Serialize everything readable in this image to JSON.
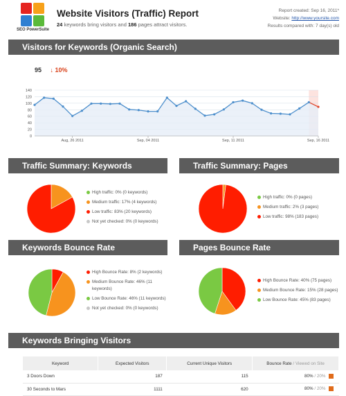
{
  "header": {
    "logo_text": "SEO PowerSuite",
    "title": "Website Visitors (Traffic) Report",
    "sub_kw_count": "24",
    "sub_mid": "keywords bring visitors and",
    "sub_pages_count": "186",
    "sub_end": "pages attract visitors.",
    "meta_created": "Report created: Sep 16, 2011*",
    "meta_website_label": "Website:",
    "meta_website_url": "http://www.yoursite.com",
    "meta_compare": "Results compared with: 7 day(s) old"
  },
  "sections": {
    "organic": "Visitors for Keywords (Organic Search)",
    "traffic_keywords": "Traffic Summary: Keywords",
    "traffic_pages": "Traffic Summary: Pages",
    "bounce_keywords": "Keywords Bounce Rate",
    "bounce_pages": "Pages Bounce Rate",
    "bringing": "Keywords Bringing Visitors"
  },
  "kpi": {
    "value": "95",
    "change": "↓ 10%"
  },
  "legends": {
    "traffic_keywords": [
      {
        "label": "High traffic: 0% (0 keywords)",
        "color": "#7ac943"
      },
      {
        "label": "Medium traffic: 17% (4 keywords)",
        "color": "#f7931e"
      },
      {
        "label": "Low traffic: 83% (20 keywords)",
        "color": "#ff1d00"
      },
      {
        "label": "Not yet checked: 0% (0 keywords)",
        "color": "#c8c8c8"
      }
    ],
    "traffic_pages": [
      {
        "label": "High traffic: 0% (0 pages)",
        "color": "#7ac943"
      },
      {
        "label": "Medium traffic: 2% (3 pages)",
        "color": "#f7931e"
      },
      {
        "label": "Low traffic: 98% (183 pages)",
        "color": "#ff1d00"
      }
    ],
    "bounce_keywords": [
      {
        "label": "High Bounce Rate: 8% (2 keywords)",
        "color": "#ff1d00"
      },
      {
        "label": "Medium Bounce Rate: 46% (11 keywords)",
        "color": "#f7931e"
      },
      {
        "label": "Low Bounce Rate: 46% (11 keywords)",
        "color": "#7ac943"
      },
      {
        "label": "Not yet checked: 0% (0 keywords)",
        "color": "#c8c8c8"
      }
    ],
    "bounce_pages": [
      {
        "label": "High Bounce Rate: 40% (75 pages)",
        "color": "#ff1d00"
      },
      {
        "label": "Medium Bounce Rate: 15% (28 pages)",
        "color": "#f7931e"
      },
      {
        "label": "Low Bounce Rate: 45% (83 pages)",
        "color": "#7ac943"
      }
    ]
  },
  "table": {
    "headers": {
      "keyword": "Keyword",
      "expected": "Expected Visitors",
      "current": "Current Unique Visitors",
      "bounce": "Bounce Rate",
      "bounce_sep": " / ",
      "bounce_extra": "Viewed on Site"
    },
    "rows": [
      {
        "keyword": "3 Doors Down",
        "expected": "187",
        "current": "115",
        "bounce": "80%",
        "sep": " / ",
        "site": "20%"
      },
      {
        "keyword": "30 Seconds to Mars",
        "expected": "1111",
        "current": "620",
        "bounce": "80%",
        "sep": " / ",
        "site": "20%"
      }
    ]
  },
  "chart_data": [
    {
      "type": "line",
      "title": "",
      "x_ticks": [
        "Aug, 26 2011",
        "Sep, 04 2011",
        "Sep, 11 2011",
        "Sep, 16 2011"
      ],
      "x_tick_index": [
        4,
        12,
        21,
        30
      ],
      "ylim": [
        0,
        140
      ],
      "y_ticks": [
        0,
        20,
        40,
        60,
        80,
        100,
        120,
        140
      ],
      "series": [
        {
          "values": [
            95,
            117,
            114,
            90,
            61,
            77,
            99,
            99,
            98,
            99,
            81,
            79,
            75,
            75,
            117,
            92,
            106,
            83,
            62,
            66,
            81,
            103,
            108,
            100,
            80,
            69,
            68,
            66,
            84,
            103,
            89
          ],
          "color": "#4d8fcc"
        }
      ],
      "highlight_last": true,
      "grid": true
    },
    {
      "type": "pie",
      "title": "",
      "slices": [
        {
          "label": "Medium traffic",
          "value": 17,
          "color": "#f7931e"
        },
        {
          "label": "Low traffic",
          "value": 83,
          "color": "#ff1d00"
        }
      ]
    },
    {
      "type": "pie",
      "title": "",
      "slices": [
        {
          "label": "Medium traffic",
          "value": 2,
          "color": "#f7931e"
        },
        {
          "label": "Low traffic",
          "value": 98,
          "color": "#ff1d00"
        }
      ]
    },
    {
      "type": "pie",
      "title": "",
      "slices": [
        {
          "label": "High Bounce Rate",
          "value": 8,
          "color": "#ff1d00"
        },
        {
          "label": "Medium Bounce Rate",
          "value": 46,
          "color": "#f7931e"
        },
        {
          "label": "Low Bounce Rate",
          "value": 46,
          "color": "#7ac943"
        }
      ]
    },
    {
      "type": "pie",
      "title": "",
      "slices": [
        {
          "label": "High Bounce Rate",
          "value": 40,
          "color": "#ff1d00"
        },
        {
          "label": "Medium Bounce Rate",
          "value": 15,
          "color": "#f7931e"
        },
        {
          "label": "Low Bounce Rate",
          "value": 45,
          "color": "#7ac943"
        }
      ]
    }
  ]
}
